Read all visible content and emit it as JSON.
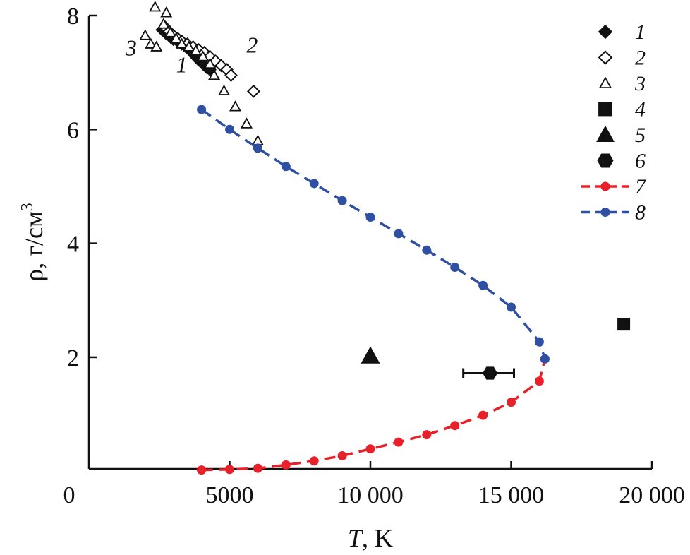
{
  "chart_data": {
    "type": "scatter",
    "xlabel_italic": "T",
    "xlabel_rest": ", K",
    "ylabel_main": "ρ, г/см",
    "ylabel_sup": "3",
    "xlim": [
      0,
      20000
    ],
    "ylim": [
      0.04,
      8
    ],
    "x_ticks": [
      {
        "value": 0,
        "label": "0"
      },
      {
        "value": 5000,
        "label": "5000"
      },
      {
        "value": 10000,
        "label": "10 000"
      },
      {
        "value": 15000,
        "label": "15 000"
      },
      {
        "value": 20000,
        "label": "20 000"
      }
    ],
    "y_ticks": [
      {
        "value": 2,
        "label": "2"
      },
      {
        "value": 4,
        "label": "4"
      },
      {
        "value": 6,
        "label": "6"
      },
      {
        "value": 8,
        "label": "8"
      }
    ],
    "series": [
      {
        "name": "1",
        "marker": "diamond-filled",
        "color": "#111111",
        "points": [
          [
            2600,
            7.75
          ],
          [
            2750,
            7.68
          ],
          [
            2900,
            7.62
          ],
          [
            3000,
            7.58
          ],
          [
            3150,
            7.55
          ],
          [
            3300,
            7.5
          ],
          [
            3450,
            7.45
          ],
          [
            3600,
            7.38
          ],
          [
            3750,
            7.3
          ],
          [
            3900,
            7.22
          ],
          [
            4050,
            7.15
          ],
          [
            4200,
            7.08
          ],
          [
            4300,
            7.05
          ]
        ]
      },
      {
        "name": "2",
        "marker": "diamond-open",
        "color": "#111111",
        "points": [
          [
            2700,
            7.8
          ],
          [
            2850,
            7.72
          ],
          [
            3000,
            7.65
          ],
          [
            3150,
            7.6
          ],
          [
            3300,
            7.55
          ],
          [
            3500,
            7.5
          ],
          [
            3700,
            7.45
          ],
          [
            3900,
            7.4
          ],
          [
            4100,
            7.35
          ],
          [
            4300,
            7.28
          ],
          [
            4500,
            7.2
          ],
          [
            4700,
            7.12
          ],
          [
            4900,
            7.05
          ],
          [
            5050,
            6.95
          ],
          [
            5850,
            6.67
          ]
        ]
      },
      {
        "name": "3",
        "marker": "triangle-open",
        "color": "#111111",
        "points": [
          [
            2000,
            7.65
          ],
          [
            2200,
            7.5
          ],
          [
            2400,
            7.45
          ],
          [
            2350,
            8.15
          ],
          [
            2750,
            8.05
          ],
          [
            2650,
            7.85
          ],
          [
            2900,
            7.7
          ],
          [
            3100,
            7.6
          ],
          [
            3300,
            7.5
          ],
          [
            3550,
            7.45
          ],
          [
            3800,
            7.38
          ],
          [
            4050,
            7.28
          ],
          [
            4300,
            7.15
          ],
          [
            4450,
            6.95
          ],
          [
            4800,
            6.68
          ],
          [
            5200,
            6.4
          ],
          [
            5600,
            6.1
          ],
          [
            6000,
            5.8
          ]
        ]
      },
      {
        "name": "4",
        "marker": "square-filled",
        "color": "#111111",
        "points": [
          [
            19000,
            2.58
          ]
        ]
      },
      {
        "name": "5",
        "marker": "triangle-filled",
        "color": "#111111",
        "points": [
          [
            10000,
            2.02
          ]
        ]
      },
      {
        "name": "6",
        "marker": "hexagon-filled",
        "color": "#111111",
        "points": [
          [
            14250,
            1.72
          ]
        ],
        "x_error": [
          13300,
          15100
        ]
      },
      {
        "name": "7",
        "marker": "dashed-line-dots",
        "color": "#e8202a",
        "points": [
          [
            4000,
            0.02
          ],
          [
            5000,
            0.03
          ],
          [
            6000,
            0.05
          ],
          [
            7000,
            0.11
          ],
          [
            8000,
            0.18
          ],
          [
            9000,
            0.27
          ],
          [
            10000,
            0.39
          ],
          [
            11000,
            0.51
          ],
          [
            12000,
            0.64
          ],
          [
            13000,
            0.8
          ],
          [
            14000,
            0.98
          ],
          [
            15000,
            1.21
          ],
          [
            16000,
            1.58
          ],
          [
            16200,
            1.97
          ]
        ]
      },
      {
        "name": "8",
        "marker": "dashed-line-dots",
        "color": "#2f4fa2",
        "points": [
          [
            4000,
            6.35
          ],
          [
            5000,
            6.0
          ],
          [
            6000,
            5.67
          ],
          [
            7000,
            5.35
          ],
          [
            8000,
            5.05
          ],
          [
            9000,
            4.75
          ],
          [
            10000,
            4.46
          ],
          [
            11000,
            4.17
          ],
          [
            12000,
            3.88
          ],
          [
            13000,
            3.58
          ],
          [
            14000,
            3.26
          ],
          [
            15000,
            2.88
          ],
          [
            16000,
            2.27
          ],
          [
            16200,
            1.97
          ]
        ]
      }
    ],
    "annotations": [
      {
        "text": "3",
        "x": 1500,
        "y": 7.3
      },
      {
        "text": "1",
        "x": 3300,
        "y": 7.0
      },
      {
        "text": "2",
        "x": 5800,
        "y": 7.35
      }
    ],
    "legend_location": "top-right"
  }
}
